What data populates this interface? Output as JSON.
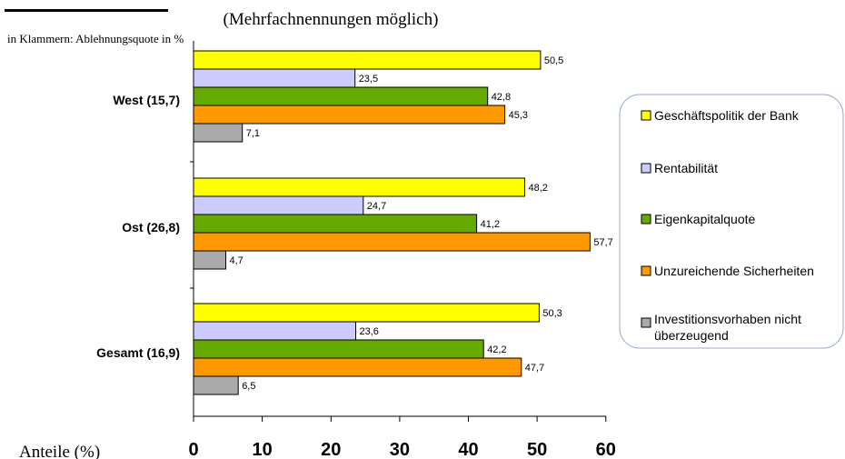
{
  "chart_data": {
    "type": "bar",
    "orientation": "horizontal",
    "subtitle": "(Mehrfachnennungen möglich)",
    "note": "in Klammern: Ablehnungsquote in %",
    "xlabel": "Anteile (%)",
    "xlim": [
      0,
      60
    ],
    "xticks": [
      "0",
      "10",
      "20",
      "30",
      "40",
      "50",
      "60"
    ],
    "categories": [
      "West (15,7)",
      "Ost (26,8)",
      "Gesamt (16,9)"
    ],
    "series": [
      {
        "name": "Geschäftspolitik der Bank",
        "color": "#ffff00",
        "values": [
          50.5,
          48.2,
          50.3
        ],
        "labels": [
          "50,5",
          "48,2",
          "50,3"
        ]
      },
      {
        "name": "Rentabilität",
        "color": "#ccccff",
        "values": [
          23.5,
          24.7,
          23.6
        ],
        "labels": [
          "23,5",
          "24,7",
          "23,6"
        ]
      },
      {
        "name": "Eigenkapitalquote",
        "color": "#66aa00",
        "values": [
          42.8,
          41.2,
          42.2
        ],
        "labels": [
          "42,8",
          "41,2",
          "42,2"
        ]
      },
      {
        "name": "Unzureichende Sicherheiten",
        "color": "#ff9900",
        "values": [
          45.3,
          57.7,
          47.7
        ],
        "labels": [
          "45,3",
          "57,7",
          "47,7"
        ]
      },
      {
        "name": "Investitionsvorhaben nicht überzeugend",
        "color": "#aaaaaa",
        "values": [
          7.1,
          4.7,
          6.5
        ],
        "labels": [
          "7,1",
          "4,7",
          "6,5"
        ]
      }
    ],
    "legend_position": "right",
    "grid": false
  }
}
